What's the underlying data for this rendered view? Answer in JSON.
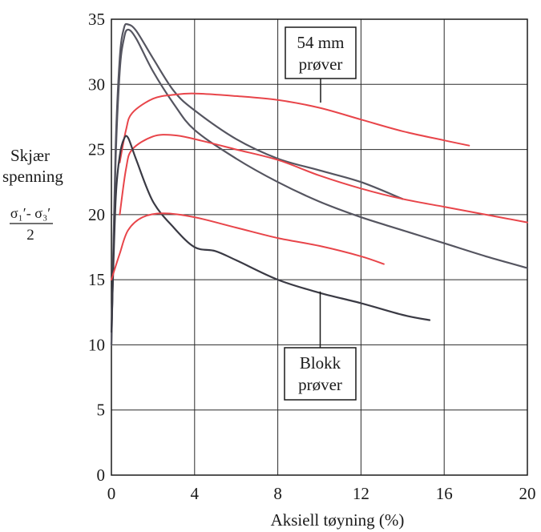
{
  "chart_data": {
    "type": "line",
    "title": "",
    "xlabel": "Aksiell tøyning (%)",
    "ylabel_lines": [
      "Skjær",
      "spenning"
    ],
    "ylabel_formula": {
      "numerator": "σ₁′- σ₃′",
      "denominator": "2"
    },
    "xlim": [
      0,
      20
    ],
    "ylim": [
      0,
      35
    ],
    "xticks": [
      0,
      4,
      8,
      12,
      16,
      20
    ],
    "xtick_labels": [
      "0",
      "4",
      "8",
      "12",
      "16",
      "20"
    ],
    "yticks": [
      0,
      5,
      10,
      15,
      20,
      25,
      30,
      35
    ],
    "ytick_labels": [
      "0",
      "5",
      "10",
      "15",
      "20",
      "25",
      "30",
      "35"
    ],
    "xgrid": [
      0,
      4,
      8,
      12,
      16,
      20
    ],
    "ygrid": [
      0,
      5,
      10,
      15,
      20,
      25,
      30,
      35
    ],
    "grid": true,
    "series": [
      {
        "color": "#555560",
        "values": [
          [
            0,
            10
          ],
          [
            0.2,
            25
          ],
          [
            0.4,
            32
          ],
          [
            0.6,
            34.3
          ],
          [
            0.8,
            34.6
          ],
          [
            1.2,
            34.1
          ],
          [
            2,
            32
          ],
          [
            3,
            29.5
          ],
          [
            4,
            28
          ],
          [
            6,
            25.8
          ],
          [
            8,
            24.3
          ],
          [
            10,
            23.4
          ],
          [
            12,
            22.5
          ],
          [
            14,
            21.2
          ]
        ]
      },
      {
        "color": "#555560",
        "values": [
          [
            0,
            10
          ],
          [
            0.2,
            24
          ],
          [
            0.4,
            31
          ],
          [
            0.6,
            33.5
          ],
          [
            0.8,
            34.2
          ],
          [
            1.2,
            33.5
          ],
          [
            2,
            31
          ],
          [
            3,
            28.5
          ],
          [
            4,
            26.5
          ],
          [
            6,
            24.3
          ],
          [
            8,
            22.5
          ],
          [
            10,
            21
          ],
          [
            12,
            19.8
          ],
          [
            14,
            18.8
          ],
          [
            16,
            17.8
          ],
          [
            18,
            16.8
          ],
          [
            20,
            15.9
          ]
        ]
      },
      {
        "color": "#e8454a",
        "values": [
          [
            0.4,
            24
          ],
          [
            0.7,
            26.5
          ],
          [
            1,
            27.8
          ],
          [
            2,
            28.9
          ],
          [
            3,
            29.2
          ],
          [
            4,
            29.3
          ],
          [
            6,
            29.1
          ],
          [
            8,
            28.8
          ],
          [
            10,
            28.2
          ],
          [
            12,
            27.3
          ],
          [
            14,
            26.4
          ],
          [
            16,
            25.7
          ],
          [
            17.2,
            25.3
          ]
        ]
      },
      {
        "color": "#e8454a",
        "values": [
          [
            0.4,
            20
          ],
          [
            0.7,
            23.5
          ],
          [
            1,
            25
          ],
          [
            2,
            26
          ],
          [
            3,
            26.1
          ],
          [
            4,
            25.8
          ],
          [
            6,
            25
          ],
          [
            8,
            24.2
          ],
          [
            10,
            23
          ],
          [
            12,
            22
          ],
          [
            14,
            21.2
          ],
          [
            16,
            20.6
          ],
          [
            18,
            20
          ],
          [
            20,
            19.4
          ]
        ]
      },
      {
        "color": "#3a3a44",
        "values": [
          [
            0,
            11
          ],
          [
            0.2,
            21
          ],
          [
            0.4,
            24.5
          ],
          [
            0.6,
            25.8
          ],
          [
            0.8,
            25.9
          ],
          [
            1.2,
            24.2
          ],
          [
            2,
            21
          ],
          [
            3,
            19
          ],
          [
            4,
            17.5
          ],
          [
            5,
            17.2
          ],
          [
            6,
            16.5
          ],
          [
            8,
            15
          ],
          [
            10,
            14
          ],
          [
            12,
            13.2
          ],
          [
            14,
            12.3
          ],
          [
            15.3,
            11.9
          ]
        ]
      },
      {
        "color": "#e8454a",
        "values": [
          [
            0,
            15
          ],
          [
            0.4,
            17
          ],
          [
            0.8,
            18.8
          ],
          [
            1.5,
            19.8
          ],
          [
            2.5,
            20.1
          ],
          [
            4,
            19.8
          ],
          [
            6,
            19
          ],
          [
            8,
            18.2
          ],
          [
            10,
            17.6
          ],
          [
            12,
            16.8
          ],
          [
            13.1,
            16.2
          ]
        ]
      }
    ],
    "annotations": [
      {
        "lines": [
          "54 mm",
          "prøver"
        ],
        "box": true,
        "target": [
          10,
          28.6
        ]
      },
      {
        "lines": [
          "Blokk",
          "prøver"
        ],
        "box": true,
        "target": [
          10,
          14.1
        ]
      }
    ]
  }
}
